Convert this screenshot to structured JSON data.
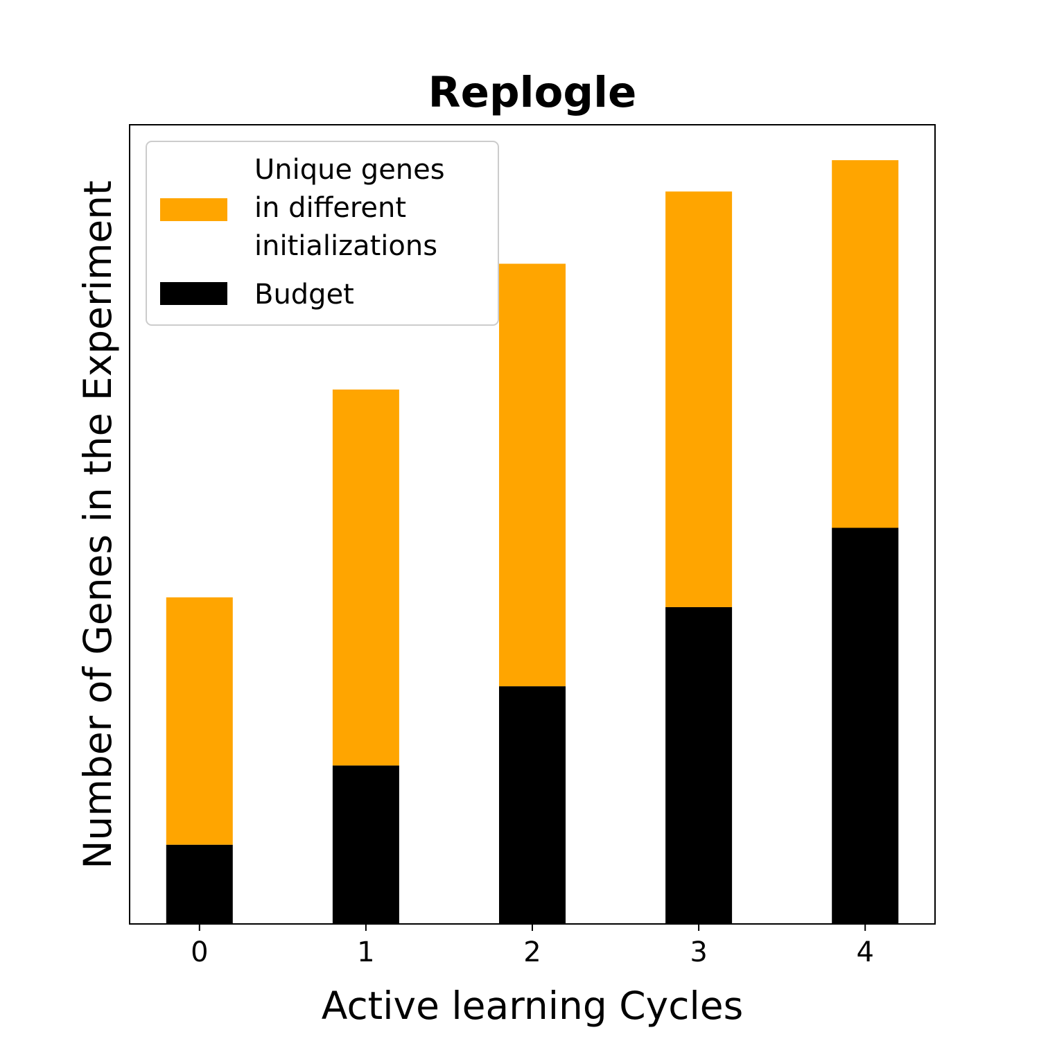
{
  "chart_data": {
    "type": "bar",
    "stacked": true,
    "title": "Replogle",
    "xlabel": "Active learning Cycles",
    "ylabel": "Number of Genes in the Experiment",
    "categories": [
      "0",
      "1",
      "2",
      "3",
      "4"
    ],
    "ylim": [
      0,
      1150
    ],
    "y_ticks_shown": false,
    "grid": false,
    "legend_position": "top-left",
    "series": [
      {
        "name": "Budget",
        "color": "#000000",
        "values": [
          114,
          228,
          342,
          456,
          570
        ]
      },
      {
        "name": "Unique genes in different initializations",
        "legend_lines": [
          "Unique genes",
          "in different",
          "initializations"
        ],
        "color": "#FFA500",
        "values": [
          356,
          541,
          608,
          598,
          529
        ]
      }
    ]
  }
}
